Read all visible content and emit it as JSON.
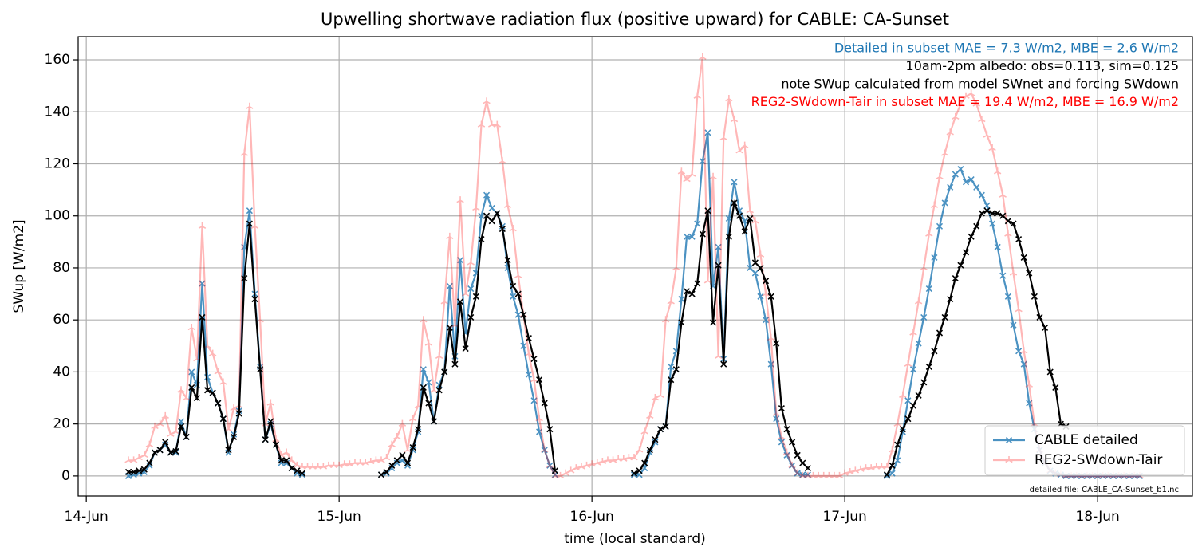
{
  "chart_data": {
    "type": "line",
    "title": "Upwelling shortwave radiation flux (positive upward) for CABLE: CA-Sunset",
    "xlabel": "time (local standard)",
    "ylabel": "SWup [W/m2]",
    "annotations": [
      {
        "text": "Detailed in subset MAE = 7.3 W/m2, MBE = 2.6 W/m2",
        "color": "#1f77b4"
      },
      {
        "text": "10am-2pm albedo: obs=0.113, sim=0.125",
        "color": "#000000"
      },
      {
        "text": "note SWup calculated from model SWnet and forcing SWdown",
        "color": "#000000"
      },
      {
        "text": "REG2-SWdown-Tair in subset MAE = 19.4 W/m2, MBE = 16.9 W/m2",
        "color": "#ff0000"
      }
    ],
    "footnote": "detailed file: CABLE_CA-Sunset_b1.nc",
    "xlim": [
      -0.77,
      105
    ],
    "ylim": [
      -7.7,
      168.9
    ],
    "xticks": [
      {
        "value": 0,
        "label": "14-Jun"
      },
      {
        "value": 24,
        "label": "15-Jun"
      },
      {
        "value": 48,
        "label": "16-Jun"
      },
      {
        "value": 72,
        "label": "17-Jun"
      },
      {
        "value": 96,
        "label": "18-Jun"
      }
    ],
    "yticks": [
      0,
      20,
      40,
      60,
      80,
      100,
      120,
      140,
      160
    ],
    "grid": true,
    "legend": "lower right",
    "x": [
      4,
      4.5,
      5,
      5.5,
      6,
      6.5,
      7,
      7.5,
      8,
      8.5,
      9,
      9.5,
      10,
      10.5,
      11,
      11.5,
      12,
      12.5,
      13,
      13.5,
      14,
      14.5,
      15,
      15.5,
      16,
      16.5,
      17,
      17.5,
      18,
      18.5,
      19,
      19.5,
      20,
      20.5,
      21,
      21.5,
      22,
      22.5,
      23,
      23.5,
      24,
      24.5,
      25,
      25.5,
      26,
      26.5,
      27,
      27.5,
      28,
      28.5,
      29,
      29.5,
      30,
      30.5,
      31,
      31.5,
      32,
      32.5,
      33,
      33.5,
      34,
      34.5,
      35,
      35.5,
      36,
      36.5,
      37,
      37.5,
      38,
      38.5,
      39,
      39.5,
      40,
      40.5,
      41,
      41.5,
      42,
      42.5,
      43,
      43.5,
      44,
      44.5,
      45,
      45.5,
      46,
      46.5,
      47,
      47.5,
      48,
      48.5,
      49,
      49.5,
      50,
      50.5,
      51,
      51.5,
      52,
      52.5,
      53,
      53.5,
      54,
      54.5,
      55,
      55.5,
      56,
      56.5,
      57,
      57.5,
      58,
      58.5,
      59,
      59.5,
      60,
      60.5,
      61,
      61.5,
      62,
      62.5,
      63,
      63.5,
      64,
      64.5,
      65,
      65.5,
      66,
      66.5,
      67,
      67.5,
      68,
      68.5,
      69,
      69.5,
      70,
      70.5,
      71,
      71.5,
      72,
      72.5,
      73,
      73.5,
      74,
      74.5,
      75,
      75.5,
      76,
      76.5,
      77,
      77.5,
      78,
      78.5,
      79,
      79.5,
      80,
      80.5,
      81,
      81.5,
      82,
      82.5,
      83,
      83.5,
      84,
      84.5,
      85,
      85.5,
      86,
      86.5,
      87,
      87.5,
      88,
      88.5,
      89,
      89.5,
      90,
      90.5,
      91,
      91.5,
      92,
      92.5,
      93,
      93.5,
      94,
      94.5,
      95,
      95.5,
      96,
      96.5,
      97,
      97.5,
      98,
      98.5,
      99,
      99.5,
      100
    ],
    "series": [
      {
        "name": "CABLE detailed",
        "color": "#1f77b4",
        "alpha": 0.8,
        "marker": "x",
        "values": [
          0,
          0.5,
          1,
          1.5,
          4,
          9,
          10,
          12,
          9,
          9,
          21,
          15,
          40,
          35,
          74,
          38,
          32,
          28,
          22,
          9,
          16,
          25,
          88,
          102,
          70,
          42,
          14,
          20,
          12,
          5,
          5,
          3,
          1,
          0.5,
          null,
          null,
          null,
          null,
          null,
          null,
          null,
          null,
          null,
          null,
          null,
          null,
          null,
          null,
          0.5,
          1,
          3,
          5,
          6,
          4,
          10,
          17,
          41,
          36,
          21,
          35,
          40,
          73,
          46,
          83,
          55,
          72,
          78,
          100,
          108,
          103,
          101,
          96,
          80,
          69,
          62,
          50,
          39,
          29,
          17,
          10,
          4,
          0.5,
          null,
          null,
          null,
          null,
          null,
          null,
          null,
          null,
          null,
          null,
          null,
          null,
          null,
          null,
          0.5,
          0.5,
          3,
          9,
          13,
          18,
          19,
          42,
          48,
          68,
          92,
          92,
          97,
          121,
          132,
          73,
          88,
          45,
          99,
          113,
          102,
          98,
          80,
          78,
          69,
          60,
          43,
          22,
          13,
          8,
          4,
          1,
          0.5,
          0.5,
          null,
          null,
          null,
          null,
          null,
          null,
          null,
          null,
          null,
          null,
          null,
          null,
          null,
          null,
          0,
          1,
          6,
          17,
          29,
          41,
          51,
          61,
          72,
          84,
          96,
          105,
          111,
          116,
          118,
          113,
          114,
          111,
          108,
          104,
          97,
          88,
          77,
          69,
          58,
          48,
          43,
          28,
          18,
          10,
          5,
          2,
          1,
          0.5,
          0,
          0,
          0,
          0,
          0,
          0,
          0,
          0,
          0,
          0,
          0,
          0,
          0,
          0,
          0
        ]
      },
      {
        "name": "REG2-SWdown-Tair",
        "color": "#ff0000",
        "alpha": 0.28,
        "marker": "tri",
        "values": [
          6,
          6,
          7,
          8,
          12,
          19,
          20,
          23,
          16,
          17,
          33,
          30,
          57,
          45,
          96,
          50,
          47,
          40,
          36,
          18,
          26,
          27,
          124,
          142,
          96,
          60,
          20,
          28,
          14,
          8,
          9,
          6,
          4,
          3.5,
          3.5,
          3.5,
          3.5,
          3.5,
          4,
          4,
          4,
          4.5,
          4.5,
          5,
          5,
          5,
          5.5,
          6,
          6,
          7,
          12,
          15,
          20,
          10,
          22,
          27,
          60,
          51,
          33,
          46,
          67,
          92,
          58,
          106,
          70,
          82,
          103,
          135,
          144,
          135,
          135,
          121,
          104,
          95,
          77,
          62,
          47,
          37,
          22,
          10,
          4,
          0,
          0,
          1,
          2,
          3,
          3.5,
          4,
          4.5,
          5,
          5.5,
          6,
          6,
          6.5,
          6.5,
          7,
          7,
          10,
          17,
          23,
          30,
          31,
          60,
          67,
          80,
          117,
          114,
          116,
          146,
          161,
          75,
          115,
          46,
          130,
          145,
          137,
          125,
          127,
          102,
          98,
          85,
          70,
          53,
          24,
          15,
          9,
          4,
          1,
          0,
          0,
          0,
          0,
          0,
          0,
          0,
          0,
          1,
          1.5,
          2,
          2.5,
          3,
          3,
          3.5,
          3.5,
          3.5,
          10,
          20,
          31,
          43,
          55,
          67,
          80,
          93,
          104,
          115,
          124,
          132,
          138,
          143,
          146,
          147,
          143,
          137,
          131,
          126,
          117,
          108,
          93,
          78,
          64,
          48,
          35,
          20,
          10,
          5,
          2,
          1,
          0.5,
          0,
          0,
          0,
          0,
          0,
          0,
          0,
          0,
          0,
          0,
          0,
          0,
          0,
          0,
          0
        ]
      },
      {
        "color": "#000000",
        "alpha": 1,
        "marker": "x",
        "values": [
          1.5,
          1.5,
          2,
          2.5,
          5,
          9,
          10,
          13,
          9,
          9.5,
          19,
          15,
          34,
          30,
          61,
          33,
          32,
          28,
          22,
          10,
          15,
          24,
          76,
          97,
          68,
          41,
          14,
          21,
          12,
          6,
          6,
          3,
          2,
          1,
          null,
          null,
          null,
          null,
          null,
          null,
          null,
          null,
          null,
          null,
          null,
          null,
          null,
          null,
          0.5,
          1.5,
          4,
          6,
          8,
          5,
          11,
          18,
          34,
          28,
          21,
          33,
          40,
          57,
          43,
          67,
          49,
          61,
          69,
          91,
          100,
          98,
          101,
          95,
          83,
          73,
          70,
          62,
          53,
          45,
          37,
          28,
          18,
          2,
          null,
          null,
          null,
          null,
          null,
          null,
          null,
          null,
          null,
          null,
          null,
          null,
          null,
          null,
          1,
          2,
          5,
          10,
          14,
          18,
          19,
          37,
          41,
          59,
          71,
          70,
          74,
          93,
          102,
          59,
          81,
          43,
          92,
          105,
          100,
          94,
          99,
          82,
          80,
          75,
          69,
          51,
          26,
          18,
          13,
          8,
          5,
          3,
          null,
          null,
          null,
          null,
          null,
          null,
          null,
          null,
          null,
          null,
          null,
          null,
          null,
          null,
          0.5,
          4,
          12,
          18,
          22,
          27,
          31,
          36,
          42,
          48,
          55,
          61,
          68,
          76,
          81,
          86,
          92,
          96,
          101,
          102,
          101,
          101,
          100,
          98,
          97,
          91,
          84,
          78,
          69,
          61,
          57,
          40,
          34,
          20,
          19,
          null,
          null,
          null,
          null,
          null,
          null,
          null,
          null,
          null,
          null,
          null,
          null,
          null,
          null
        ]
      }
    ]
  }
}
